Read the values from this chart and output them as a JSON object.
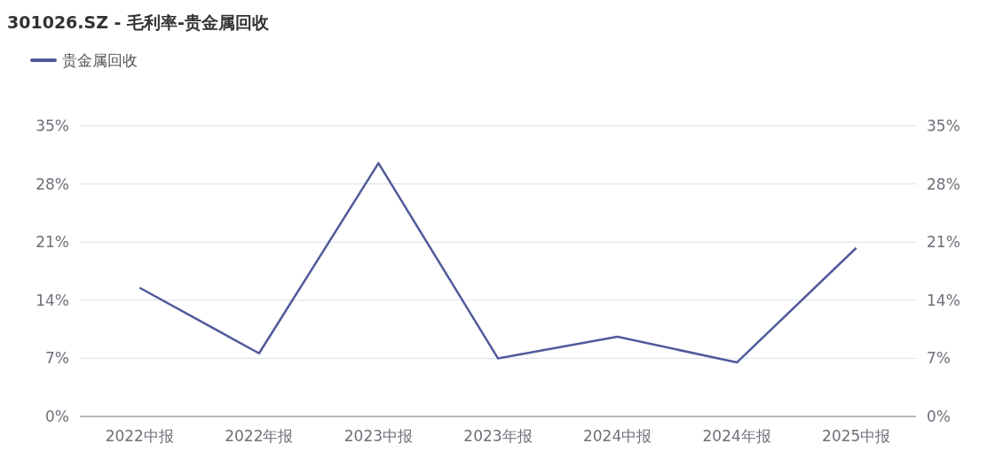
{
  "chart_data": {
    "type": "line",
    "title": "301026.SZ - 毛利率-贵金属回收",
    "categories": [
      "2022中报",
      "2022年报",
      "2023中报",
      "2023年报",
      "2024中报",
      "2024年报",
      "2025中报"
    ],
    "series": [
      {
        "name": "贵金属回收",
        "color": "#515a9a",
        "values": [
          15.5,
          7.6,
          30.5,
          7.0,
          9.6,
          6.5,
          20.3
        ]
      }
    ],
    "ylim": [
      0,
      35
    ],
    "yticks": [
      {
        "value": 0,
        "label": "0%"
      },
      {
        "value": 7,
        "label": "7%"
      },
      {
        "value": 14,
        "label": "14%"
      },
      {
        "value": 21,
        "label": "21%"
      },
      {
        "value": 28,
        "label": "28%"
      },
      {
        "value": 35,
        "label": "35%"
      }
    ],
    "y2lim": [
      0,
      35
    ],
    "y2ticks": [
      {
        "value": 0,
        "label": "0%"
      },
      {
        "value": 7,
        "label": "7%"
      },
      {
        "value": 14,
        "label": "14%"
      },
      {
        "value": 21,
        "label": "21%"
      },
      {
        "value": 28,
        "label": "28%"
      },
      {
        "value": 35,
        "label": "35%"
      }
    ],
    "grid": "y",
    "legend": "top left",
    "marker": "none",
    "line_style": "solid"
  }
}
